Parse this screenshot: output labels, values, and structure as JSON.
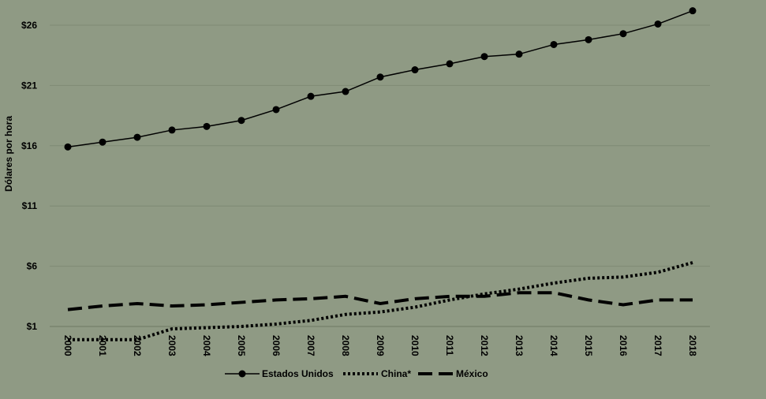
{
  "chart_data": {
    "type": "line",
    "ylabel": "Dólares por hora",
    "xlabel": "",
    "x": [
      "2000",
      "2001",
      "2002",
      "2003",
      "2004",
      "2005",
      "2006",
      "2007",
      "2008",
      "2009",
      "2010",
      "2011",
      "2012",
      "2013",
      "2014",
      "2015",
      "2016",
      "2017",
      "2018"
    ],
    "ylim": [
      1,
      27.5
    ],
    "yticks": [
      1,
      6,
      11,
      16,
      21,
      26
    ],
    "ytick_labels": [
      "$1",
      "$6",
      "$11",
      "$16",
      "$21",
      "$26"
    ],
    "grid": "horizontal",
    "legend_position": "bottom",
    "series": [
      {
        "name": "Estados Unidos",
        "style": "solid-markers",
        "color": "#000000",
        "values": [
          15.9,
          16.3,
          16.7,
          17.3,
          17.6,
          18.1,
          19.0,
          20.1,
          20.5,
          21.7,
          22.3,
          22.8,
          23.4,
          23.6,
          24.4,
          24.8,
          25.3,
          26.1,
          27.2
        ]
      },
      {
        "name": "China*",
        "style": "dotted",
        "color": "#000000",
        "values": [
          -0.1,
          -0.1,
          -0.1,
          0.8,
          0.9,
          1.0,
          1.2,
          1.5,
          2.0,
          2.2,
          2.6,
          3.2,
          3.7,
          4.1,
          4.6,
          5.0,
          5.1,
          5.5,
          6.3
        ]
      },
      {
        "name": "México",
        "style": "dashed",
        "color": "#000000",
        "values": [
          2.4,
          2.7,
          2.9,
          2.7,
          2.8,
          3.0,
          3.2,
          3.3,
          3.5,
          2.9,
          3.3,
          3.5,
          3.5,
          3.8,
          3.8,
          3.2,
          2.8,
          3.2,
          3.2
        ]
      }
    ]
  }
}
